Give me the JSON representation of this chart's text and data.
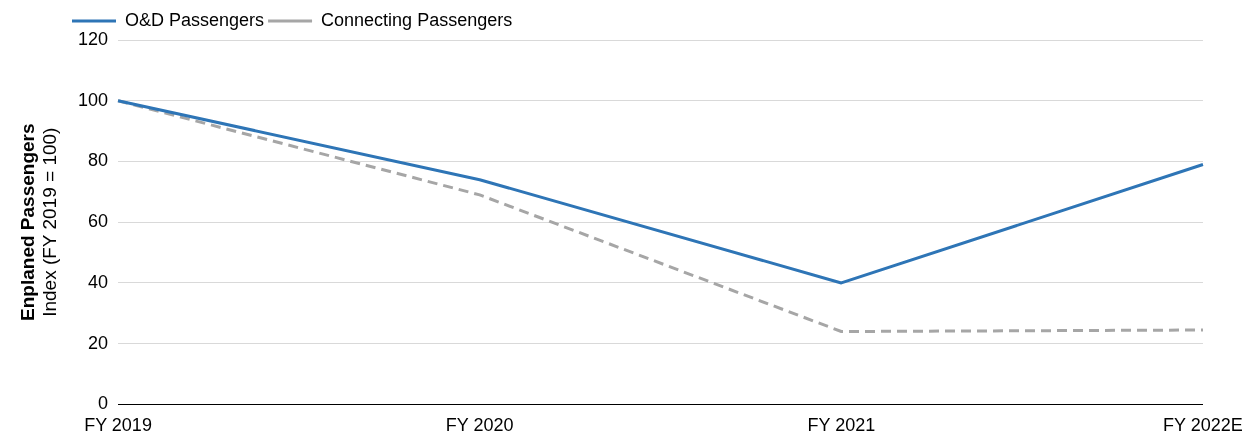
{
  "chart_data": {
    "type": "line",
    "ylabel": "Enplaned Passengers\nIndex (FY 2019 = 100)",
    "categories": [
      "FY 2019",
      "FY 2020",
      "FY 2021",
      "FY 2022E"
    ],
    "series": [
      {
        "name": "O&D Passengers",
        "color": "#2e75b6",
        "values": [
          100,
          74,
          40,
          79
        ],
        "line_style": "solid"
      },
      {
        "name": "Connecting Passengers",
        "color": "#a6a6a6",
        "values": [
          100,
          69,
          24,
          24.5
        ],
        "line_style": "dashed"
      }
    ],
    "ylim": [
      0,
      120
    ],
    "yticks": [
      0,
      20,
      40,
      60,
      80,
      100,
      120
    ],
    "grid": "y",
    "legend": "top left",
    "marker": "none"
  }
}
